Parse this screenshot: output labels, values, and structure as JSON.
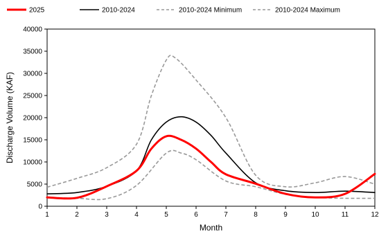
{
  "chart_data": {
    "type": "line",
    "title": "",
    "xlabel": "Month",
    "ylabel": "Discharge Volume (KAF)",
    "xlim": [
      1,
      12
    ],
    "ylim": [
      0,
      40000
    ],
    "xticks": [
      "1",
      "2",
      "3",
      "4",
      "5",
      "6",
      "7",
      "8",
      "9",
      "10",
      "11",
      "12"
    ],
    "yticks": [
      "0",
      "5000",
      "10000",
      "15000",
      "20000",
      "25000",
      "30000",
      "35000",
      "40000"
    ],
    "grid": "off",
    "legend": "top",
    "series": [
      {
        "name": "2025",
        "color": "#ff0000",
        "style": "solid",
        "width": 3,
        "points": [
          [
            1,
            2000
          ],
          [
            2,
            1900
          ],
          [
            3,
            4500
          ],
          [
            4,
            8000
          ],
          [
            4.5,
            13000
          ],
          [
            5,
            15800
          ],
          [
            5.5,
            15000
          ],
          [
            6,
            13000
          ],
          [
            6.5,
            10000
          ],
          [
            7,
            7200
          ],
          [
            8,
            5100
          ],
          [
            9,
            2800
          ],
          [
            10,
            2000
          ],
          [
            11,
            2800
          ],
          [
            12,
            7300
          ]
        ]
      },
      {
        "name": "2010-2024",
        "color": "#000000",
        "style": "solid",
        "width": 1.6,
        "points": [
          [
            1,
            2800
          ],
          [
            2,
            3100
          ],
          [
            3,
            4500
          ],
          [
            4,
            8000
          ],
          [
            4.5,
            15000
          ],
          [
            5,
            19000
          ],
          [
            5.5,
            20200
          ],
          [
            6,
            19000
          ],
          [
            6.5,
            16000
          ],
          [
            7,
            12000
          ],
          [
            8,
            5300
          ],
          [
            9,
            3500
          ],
          [
            10,
            3100
          ],
          [
            11,
            3400
          ],
          [
            12,
            3100
          ]
        ]
      },
      {
        "name": "2010-2024 Minimum",
        "color": "#999999",
        "style": "dashed",
        "width": 1.6,
        "points": [
          [
            1,
            2000
          ],
          [
            2,
            1800
          ],
          [
            3,
            1700
          ],
          [
            4,
            4700
          ],
          [
            5,
            12000
          ],
          [
            5.5,
            12000
          ],
          [
            6,
            10500
          ],
          [
            7,
            5700
          ],
          [
            8,
            4400
          ],
          [
            9,
            2700
          ],
          [
            10,
            2000
          ],
          [
            11,
            1800
          ],
          [
            12,
            1800
          ]
        ]
      },
      {
        "name": "2010-2024 Maximum",
        "color": "#999999",
        "style": "dashed",
        "width": 1.6,
        "points": [
          [
            1,
            4300
          ],
          [
            2,
            6300
          ],
          [
            3,
            8700
          ],
          [
            4,
            14000
          ],
          [
            4.5,
            25000
          ],
          [
            5,
            33000
          ],
          [
            5.3,
            33500
          ],
          [
            6,
            28500
          ],
          [
            7,
            20000
          ],
          [
            8,
            7000
          ],
          [
            9,
            4400
          ],
          [
            10,
            5300
          ],
          [
            11,
            6700
          ],
          [
            12,
            5000
          ]
        ]
      }
    ]
  }
}
